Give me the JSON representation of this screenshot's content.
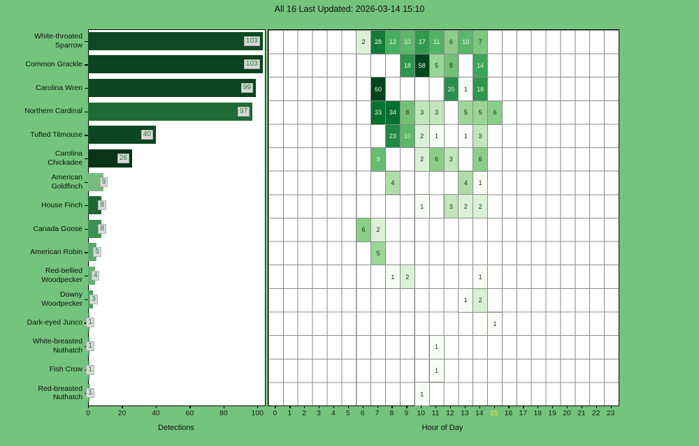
{
  "title": "All 16 Last Updated: 2026-03-14 15:10",
  "colors": {
    "background": "#74c47e",
    "plot_background": "#ffffff",
    "grid": "#8a8a8a",
    "spine": "#000000",
    "value_box_bg": "#d9d9d9",
    "value_box_border": "#aeaeae",
    "value_text": "#1f7a38",
    "tick_label": "#1a1a1a",
    "highlight_tick": "#e8e838",
    "cell_text_dark": "#262626",
    "cell_text_light": "#f2f2f2"
  },
  "species": [
    {
      "label": "White-throated\nSparrow",
      "total": 103,
      "bar_color": "#0d4a24"
    },
    {
      "label": "Common Grackle",
      "total": 103,
      "bar_color": "#0b4220"
    },
    {
      "label": "Carolina Wren",
      "total": 99,
      "bar_color": "#0c4623"
    },
    {
      "label": "Northern Cardinal",
      "total": 97,
      "bar_color": "#1e6b35"
    },
    {
      "label": "Tufted Titmouse",
      "total": 40,
      "bar_color": "#0e4623"
    },
    {
      "label": "Carolina\nChickadee",
      "total": 26,
      "bar_color": "#093418"
    },
    {
      "label": "American\nGoldfinch",
      "total": 9,
      "bar_color": "#77bb80"
    },
    {
      "label": "House Finch",
      "total": 8,
      "bar_color": "#1c6633"
    },
    {
      "label": "Canada Goose",
      "total": 8,
      "bar_color": "#3b9052"
    },
    {
      "label": "American Robin",
      "total": 5,
      "bar_color": "#58aa6b"
    },
    {
      "label": "Red-bellied\nWoodpecker",
      "total": 4,
      "bar_color": "#63b173"
    },
    {
      "label": "Downy\nWoodpecker",
      "total": 3,
      "bar_color": "#49a05e"
    },
    {
      "label": "Dark-eyed Junco",
      "total": 1,
      "bar_color": "#4ba25f"
    },
    {
      "label": "White-breasted\nNuthatch",
      "total": 1,
      "bar_color": "#4ba25f"
    },
    {
      "label": "Fish Crow",
      "total": 1,
      "bar_color": "#4ba25f"
    },
    {
      "label": "Red-breasted\nNuthatch",
      "total": 1,
      "bar_color": "#4ba25f"
    }
  ],
  "chart_data": [
    {
      "type": "bar",
      "orientation": "horizontal",
      "xlabel": "Detections",
      "xlim": [
        0,
        104
      ],
      "xticks": [
        0,
        20,
        40,
        60,
        80,
        100
      ],
      "categories": [
        "White-throated Sparrow",
        "Common Grackle",
        "Carolina Wren",
        "Northern Cardinal",
        "Tufted Titmouse",
        "Carolina Chickadee",
        "American Goldfinch",
        "House Finch",
        "Canada Goose",
        "American Robin",
        "Red-bellied Woodpecker",
        "Downy Woodpecker",
        "Dark-eyed Junco",
        "White-breasted Nuthatch",
        "Fish Crow",
        "Red-breasted Nuthatch"
      ],
      "values": [
        103,
        103,
        99,
        97,
        40,
        26,
        9,
        8,
        8,
        5,
        4,
        3,
        1,
        1,
        1,
        1
      ]
    },
    {
      "type": "heatmap",
      "xlabel": "Hour of Day",
      "xticks": [
        0,
        1,
        2,
        3,
        4,
        5,
        6,
        7,
        8,
        9,
        10,
        11,
        12,
        13,
        14,
        15,
        16,
        17,
        18,
        19,
        20,
        21,
        22,
        23
      ],
      "highlight_hour": 15,
      "colormap": "Greens",
      "norm": "log",
      "vmin": 1,
      "vmax": 60,
      "categories": [
        "White-throated Sparrow",
        "Common Grackle",
        "Carolina Wren",
        "Northern Cardinal",
        "Tufted Titmouse",
        "Carolina Chickadee",
        "American Goldfinch",
        "House Finch",
        "Canada Goose",
        "American Robin",
        "Red-bellied Woodpecker",
        "Downy Woodpecker",
        "Dark-eyed Junco",
        "White-breasted Nuthatch",
        "Fish Crow",
        "Red-breasted Nuthatch"
      ],
      "cells": [
        {
          "row": 0,
          "hour": 6,
          "value": 2
        },
        {
          "row": 0,
          "hour": 7,
          "value": 28
        },
        {
          "row": 0,
          "hour": 8,
          "value": 12
        },
        {
          "row": 0,
          "hour": 9,
          "value": 10
        },
        {
          "row": 0,
          "hour": 10,
          "value": 17
        },
        {
          "row": 0,
          "hour": 11,
          "value": 11
        },
        {
          "row": 0,
          "hour": 12,
          "value": 6
        },
        {
          "row": 0,
          "hour": 13,
          "value": 10
        },
        {
          "row": 0,
          "hour": 14,
          "value": 7
        },
        {
          "row": 1,
          "hour": 9,
          "value": 18
        },
        {
          "row": 1,
          "hour": 10,
          "value": 58
        },
        {
          "row": 1,
          "hour": 11,
          "value": 5
        },
        {
          "row": 1,
          "hour": 12,
          "value": 8
        },
        {
          "row": 1,
          "hour": 14,
          "value": 14
        },
        {
          "row": 2,
          "hour": 7,
          "value": 60
        },
        {
          "row": 2,
          "hour": 12,
          "value": 20
        },
        {
          "row": 2,
          "hour": 13,
          "value": 1
        },
        {
          "row": 2,
          "hour": 14,
          "value": 18
        },
        {
          "row": 3,
          "hour": 7,
          "value": 33
        },
        {
          "row": 3,
          "hour": 8,
          "value": 34
        },
        {
          "row": 3,
          "hour": 9,
          "value": 8
        },
        {
          "row": 3,
          "hour": 10,
          "value": 3
        },
        {
          "row": 3,
          "hour": 11,
          "value": 3
        },
        {
          "row": 3,
          "hour": 13,
          "value": 5
        },
        {
          "row": 3,
          "hour": 14,
          "value": 5
        },
        {
          "row": 3,
          "hour": 15,
          "value": 6
        },
        {
          "row": 4,
          "hour": 8,
          "value": 23
        },
        {
          "row": 4,
          "hour": 9,
          "value": 10
        },
        {
          "row": 4,
          "hour": 10,
          "value": 2
        },
        {
          "row": 4,
          "hour": 11,
          "value": 1
        },
        {
          "row": 4,
          "hour": 13,
          "value": 1
        },
        {
          "row": 4,
          "hour": 14,
          "value": 3
        },
        {
          "row": 5,
          "hour": 7,
          "value": 9
        },
        {
          "row": 5,
          "hour": 10,
          "value": 2
        },
        {
          "row": 5,
          "hour": 11,
          "value": 6
        },
        {
          "row": 5,
          "hour": 12,
          "value": 3
        },
        {
          "row": 5,
          "hour": 14,
          "value": 6
        },
        {
          "row": 6,
          "hour": 8,
          "value": 4
        },
        {
          "row": 6,
          "hour": 13,
          "value": 4
        },
        {
          "row": 6,
          "hour": 14,
          "value": 1
        },
        {
          "row": 7,
          "hour": 10,
          "value": 1
        },
        {
          "row": 7,
          "hour": 12,
          "value": 3
        },
        {
          "row": 7,
          "hour": 13,
          "value": 2
        },
        {
          "row": 7,
          "hour": 14,
          "value": 2
        },
        {
          "row": 8,
          "hour": 6,
          "value": 6
        },
        {
          "row": 8,
          "hour": 7,
          "value": 2
        },
        {
          "row": 9,
          "hour": 7,
          "value": 5
        },
        {
          "row": 10,
          "hour": 8,
          "value": 1
        },
        {
          "row": 10,
          "hour": 9,
          "value": 2
        },
        {
          "row": 10,
          "hour": 14,
          "value": 1
        },
        {
          "row": 11,
          "hour": 13,
          "value": 1
        },
        {
          "row": 11,
          "hour": 14,
          "value": 2
        },
        {
          "row": 12,
          "hour": 15,
          "value": 1
        },
        {
          "row": 13,
          "hour": 11,
          "value": 1
        },
        {
          "row": 14,
          "hour": 11,
          "value": 1
        },
        {
          "row": 15,
          "hour": 10,
          "value": 1
        }
      ]
    }
  ]
}
